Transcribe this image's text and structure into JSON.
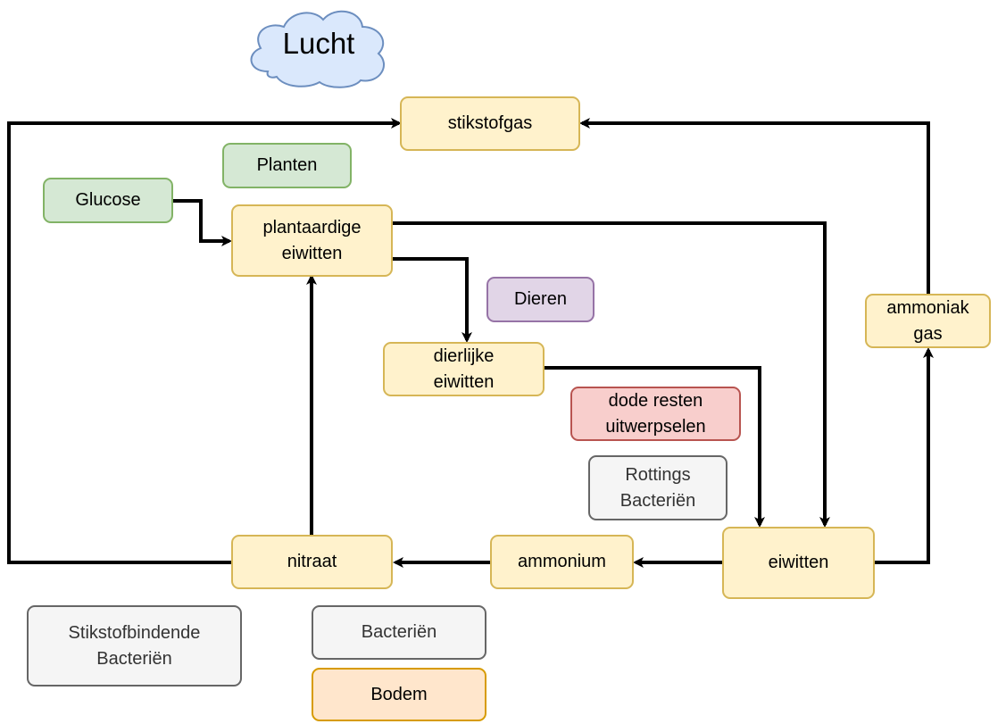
{
  "cloud": {
    "label": "Lucht"
  },
  "nodes": {
    "stikstofgas": "stikstofgas",
    "planten": "Planten",
    "glucose": "Glucose",
    "plantaardige_eiwitten": "plantaardige\neiwitten",
    "dieren": "Dieren",
    "dierlijke_eiwitten": "dierlijke\neiwitten",
    "ammoniak_gas": "ammoniak\ngas",
    "dode_resten": "dode resten\nuitwerpselen",
    "rottings_bacterien": "Rottings\nBacteriën",
    "eiwitten": "eiwitten",
    "ammonium": "ammonium",
    "nitraat": "nitraat",
    "stikstofbindende_bacterien": "Stikstofbindende\nBacteriën",
    "bacterien": "Bacteriën",
    "bodem": "Bodem"
  },
  "colors": {
    "edge": "#000000",
    "cloud_fill": "#dae8fc",
    "cloud_stroke": "#6c8ebf"
  }
}
